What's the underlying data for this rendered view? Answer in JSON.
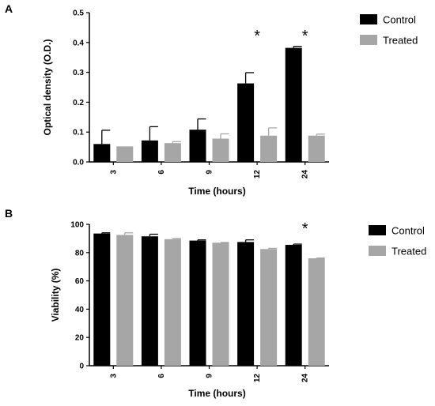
{
  "chart_data": [
    {
      "type": "bar",
      "panel_label": "A",
      "categories": [
        "3",
        "6",
        "9",
        "12",
        "24"
      ],
      "series": [
        {
          "name": "Control",
          "color": "#000000",
          "values": [
            0.06,
            0.072,
            0.108,
            0.263,
            0.382
          ],
          "errors": [
            0.046,
            0.046,
            0.036,
            0.036,
            0.005
          ]
        },
        {
          "name": "Treated",
          "color": "#a6a6a6",
          "values": [
            0.052,
            0.063,
            0.078,
            0.088,
            0.088
          ],
          "errors": [
            0.0,
            0.005,
            0.016,
            0.026,
            0.005
          ]
        }
      ],
      "xlabel": "Time (hours)",
      "ylabel": "Optical density (O.D.)",
      "ylim": [
        0,
        0.5
      ],
      "yticks": [
        "0.0",
        "0.1",
        "0.2",
        "0.3",
        "0.4",
        "0.5"
      ],
      "significance": [
        {
          "category": "12",
          "label": "*"
        },
        {
          "category": "24",
          "label": "*"
        }
      ],
      "legend_position": "top-right"
    },
    {
      "type": "bar",
      "panel_label": "B",
      "categories": [
        "3",
        "6",
        "9",
        "12",
        "24"
      ],
      "series": [
        {
          "name": "Control",
          "color": "#000000",
          "values": [
            93.5,
            91.5,
            88.5,
            87.5,
            85.5
          ],
          "errors": [
            0.5,
            1.5,
            0.5,
            1.5,
            0.5
          ]
        },
        {
          "name": "Treated",
          "color": "#a6a6a6",
          "values": [
            92.5,
            89.5,
            87.0,
            82.5,
            76.0
          ],
          "errors": [
            1.5,
            0.5,
            0.2,
            0.5,
            0.2
          ]
        }
      ],
      "xlabel": "Time (hours)",
      "ylabel": "Viability (%)",
      "ylim": [
        0,
        100
      ],
      "yticks": [
        "0",
        "20",
        "40",
        "60",
        "80",
        "100"
      ],
      "significance": [
        {
          "category": "24",
          "label": "*"
        }
      ],
      "legend_position": "top-right"
    }
  ]
}
